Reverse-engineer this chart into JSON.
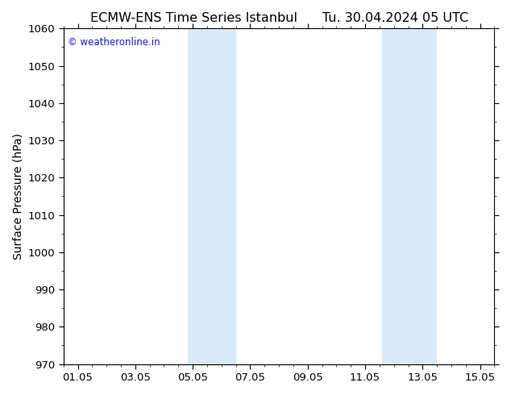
{
  "title_left": "ECMW-ENS Time Series Istanbul",
  "title_right": "Tu. 30.04.2024 05 UTC",
  "ylabel": "Surface Pressure (hPa)",
  "ylim": [
    970,
    1060
  ],
  "yticks": [
    970,
    980,
    990,
    1000,
    1010,
    1020,
    1030,
    1040,
    1050,
    1060
  ],
  "xtick_labels": [
    "01.05",
    "03.05",
    "05.05",
    "07.05",
    "09.05",
    "11.05",
    "13.05",
    "15.05"
  ],
  "xtick_positions": [
    0,
    2,
    4,
    6,
    8,
    10,
    12,
    14
  ],
  "xlim": [
    -0.5,
    14.5
  ],
  "shaded_bands": [
    {
      "x_start": 3.82,
      "x_end": 4.5,
      "color": "#d8eaf7"
    },
    {
      "x_start": 4.5,
      "x_end": 5.5,
      "color": "#d8eaf7"
    },
    {
      "x_start": 10.6,
      "x_end": 11.5,
      "color": "#d8eaf7"
    },
    {
      "x_start": 11.5,
      "x_end": 12.5,
      "color": "#d8eaf7"
    }
  ],
  "watermark_text": "© weatheronline.in",
  "watermark_color": "#1a1acc",
  "background_color": "#ffffff",
  "plot_bg_color": "#ffffff",
  "title_fontsize": 11.5,
  "axis_label_fontsize": 10,
  "tick_fontsize": 9.5
}
